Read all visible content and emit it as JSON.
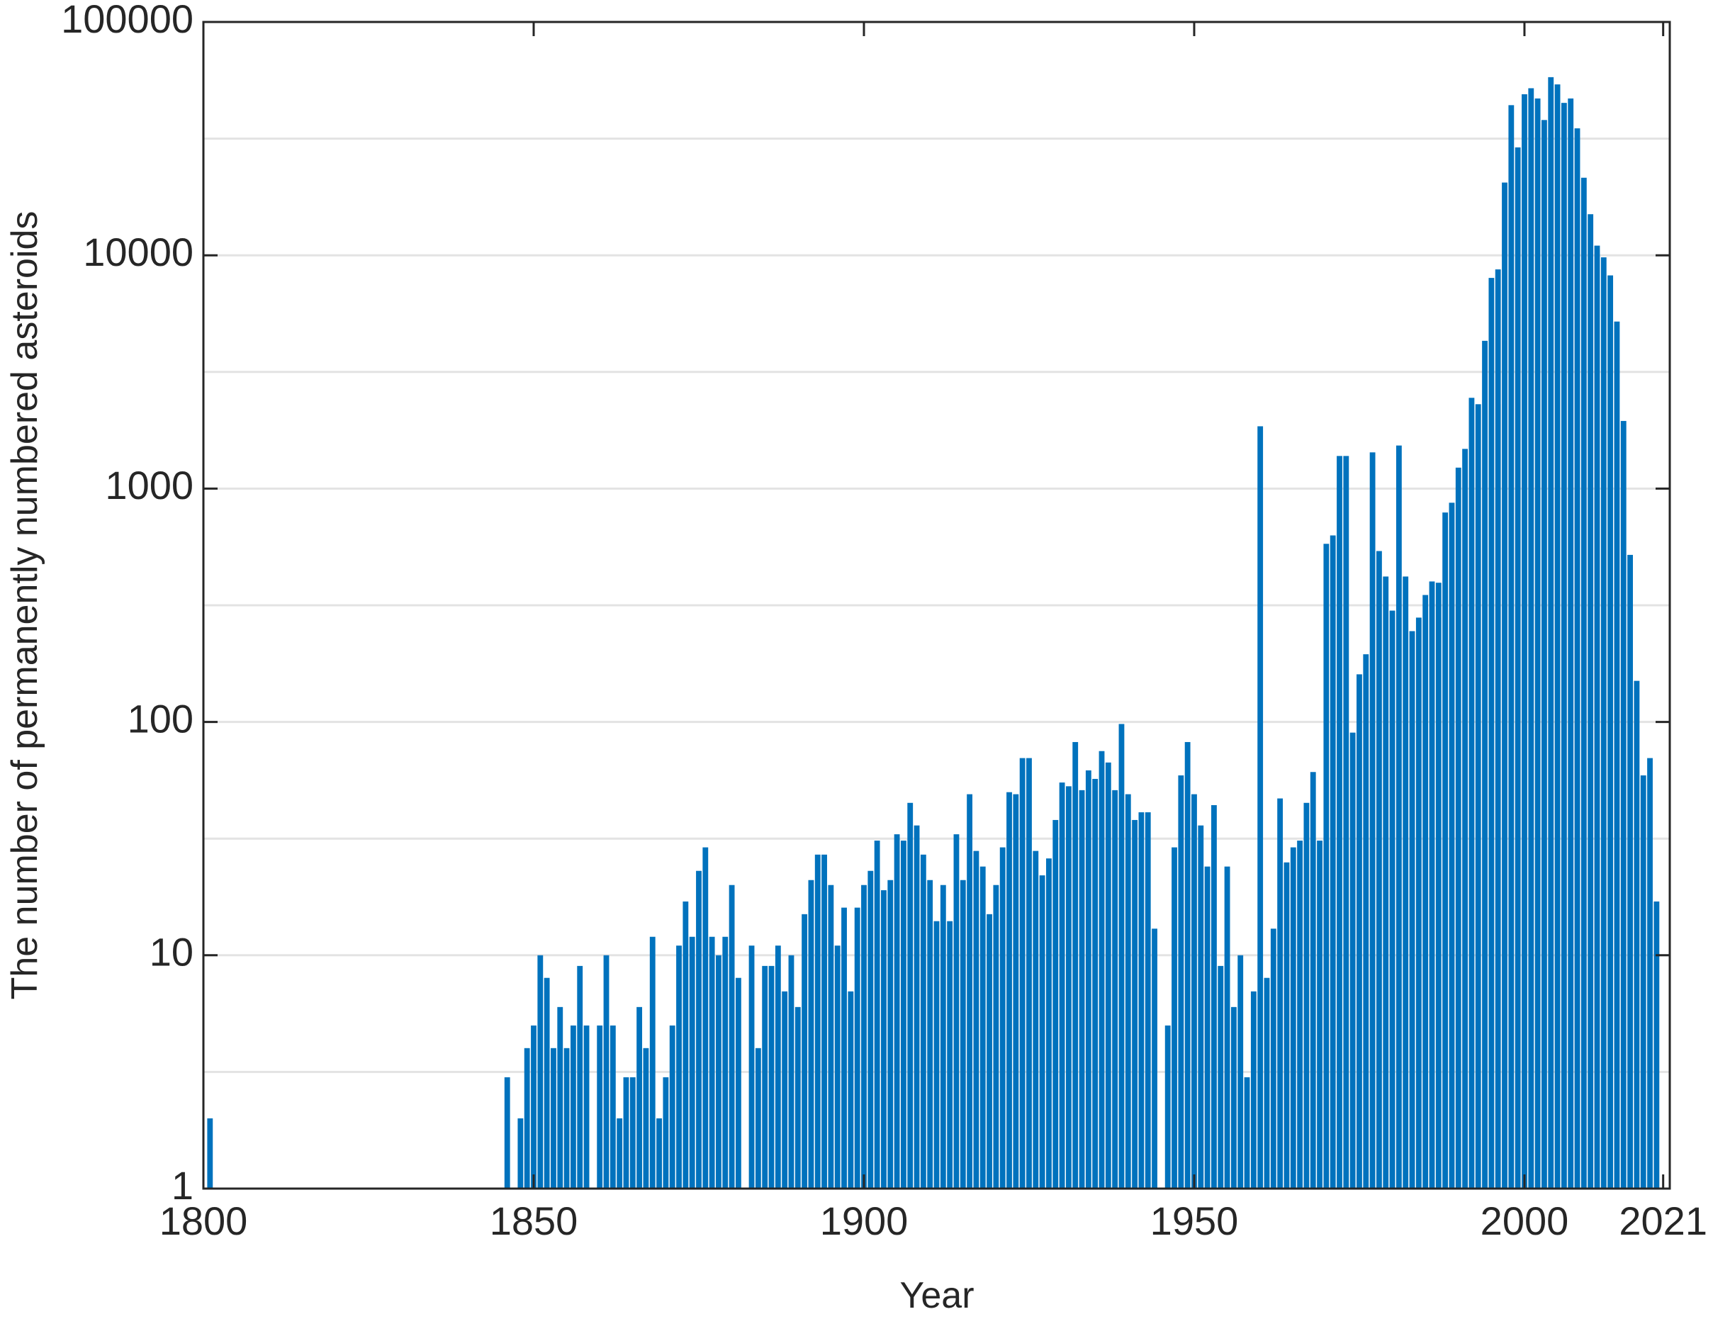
{
  "chart_data": {
    "type": "bar",
    "x_label": "Year",
    "y_label": "The number of permanently numbered asteroids",
    "x": [
      1801,
      1846,
      1848,
      1849,
      1850,
      1851,
      1852,
      1853,
      1854,
      1855,
      1856,
      1857,
      1858,
      1860,
      1861,
      1862,
      1863,
      1864,
      1865,
      1866,
      1867,
      1868,
      1869,
      1870,
      1871,
      1872,
      1873,
      1874,
      1875,
      1876,
      1877,
      1878,
      1879,
      1880,
      1881,
      1883,
      1884,
      1885,
      1886,
      1887,
      1888,
      1889,
      1890,
      1891,
      1892,
      1893,
      1894,
      1895,
      1896,
      1897,
      1898,
      1899,
      1900,
      1901,
      1902,
      1903,
      1904,
      1905,
      1906,
      1907,
      1908,
      1909,
      1910,
      1911,
      1912,
      1913,
      1914,
      1915,
      1916,
      1917,
      1918,
      1919,
      1920,
      1921,
      1922,
      1923,
      1924,
      1925,
      1926,
      1927,
      1928,
      1929,
      1930,
      1931,
      1932,
      1933,
      1934,
      1935,
      1936,
      1937,
      1938,
      1939,
      1940,
      1941,
      1942,
      1943,
      1944,
      1946,
      1947,
      1948,
      1949,
      1950,
      1951,
      1952,
      1953,
      1954,
      1955,
      1956,
      1957,
      1958,
      1959,
      1960,
      1961,
      1962,
      1963,
      1964,
      1965,
      1966,
      1967,
      1968,
      1969,
      1970,
      1971,
      1972,
      1973,
      1974,
      1975,
      1976,
      1977,
      1978,
      1979,
      1980,
      1981,
      1982,
      1983,
      1984,
      1985,
      1986,
      1987,
      1988,
      1989,
      1990,
      1991,
      1992,
      1993,
      1994,
      1995,
      1996,
      1997,
      1998,
      1999,
      2000,
      2001,
      2002,
      2003,
      2004,
      2005,
      2006,
      2007,
      2008,
      2009,
      2010,
      2011,
      2012,
      2013,
      2014,
      2015,
      2016,
      2017,
      2018,
      2019,
      2020
    ],
    "values": [
      2,
      3,
      2,
      4,
      5,
      10,
      8,
      4,
      6,
      4,
      5,
      9,
      5,
      5,
      10,
      5,
      2,
      3,
      3,
      6,
      4,
      12,
      2,
      3,
      5,
      11,
      17,
      12,
      23,
      29,
      12,
      10,
      12,
      20,
      8,
      11,
      4,
      9,
      9,
      11,
      7,
      10,
      6,
      15,
      21,
      27,
      27,
      20,
      11,
      16,
      7,
      16,
      20,
      23,
      31,
      19,
      21,
      33,
      31,
      45,
      36,
      27,
      21,
      14,
      20,
      14,
      33,
      21,
      49,
      28,
      24,
      15,
      20,
      29,
      50,
      49,
      70,
      70,
      28,
      22,
      26,
      38,
      55,
      53,
      82,
      51,
      62,
      57,
      75,
      67,
      51,
      98,
      49,
      38,
      41,
      41,
      13,
      5,
      29,
      59,
      82,
      49,
      36,
      24,
      44,
      9,
      24,
      6,
      10,
      3,
      7,
      1850,
      8,
      13,
      47,
      25,
      29,
      31,
      45,
      61,
      31,
      580,
      630,
      1380,
      1380,
      90,
      160,
      195,
      1430,
      540,
      420,
      300,
      1530,
      420,
      245,
      280,
      350,
      400,
      395,
      790,
      870,
      1230,
      1480,
      2450,
      2300,
      4300,
      8000,
      8700,
      20500,
      44000,
      29000,
      49000,
      52000,
      47000,
      38000,
      58000,
      54000,
      45000,
      47000,
      35000,
      21500,
      15000,
      11000,
      9800,
      8200,
      5200,
      1950,
      520,
      150,
      59,
      70,
      17
    ],
    "color": "#0072bd",
    "yscale": "log",
    "grid": true,
    "xlim": [
      1800,
      2022
    ],
    "xticks": [
      1800,
      1850,
      1900,
      1950,
      2000,
      2021
    ],
    "ylim": [
      1,
      100000
    ],
    "yticks": [
      1,
      10,
      100,
      1000,
      10000,
      100000
    ]
  }
}
